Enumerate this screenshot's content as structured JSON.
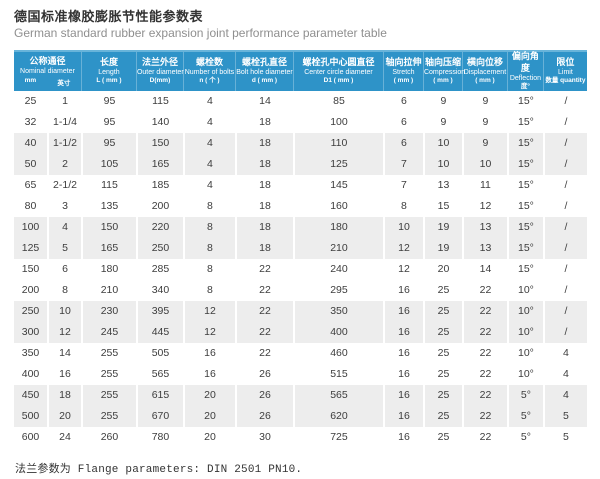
{
  "page": {
    "title": "德国标准橡胶膨胀节性能参数表",
    "subtitle": "German standard rubber expansion joint performance parameter table",
    "footnote": "法兰参数为 Flange parameters: DIN 2501 PN10."
  },
  "colors": {
    "header_bg": "#2e93c8",
    "header_top_edge": "#68b4da",
    "alt_row_bg": "#ededed",
    "title_text": "#333333",
    "subtitle_text": "#8f8f8f",
    "header_text": "#ffffff",
    "body_text": "#3d3d3d"
  },
  "table": {
    "header": {
      "group": {
        "zh": "公称通径",
        "en": "Nominal diameter",
        "unit_left": "mm",
        "unit_right": "英寸"
      },
      "cols": [
        {
          "zh": "长度",
          "en": "Length",
          "unit": "L ( mm )"
        },
        {
          "zh": "法兰外径",
          "en": "Outer diameter",
          "unit": "D(mm)"
        },
        {
          "zh": "螺栓数",
          "en": "Number of bolts",
          "unit": "n ( 个 )"
        },
        {
          "zh": "螺栓孔直径",
          "en": "Bolt hole diameter",
          "unit": "d ( mm )"
        },
        {
          "zh": "螺栓孔中心圆直径",
          "en": "Center circle diameter",
          "unit": "D1 ( mm )"
        },
        {
          "zh": "轴向拉伸",
          "en": "Stretch",
          "unit": "( mm )"
        },
        {
          "zh": "轴向压缩",
          "en": "Compression",
          "unit": "( mm )"
        },
        {
          "zh": "横向位移",
          "en": "Displacement",
          "unit": "( mm )"
        },
        {
          "zh": "偏向角度",
          "en": "Deflection",
          "unit": "度°"
        },
        {
          "zh": "限位",
          "en": "Limit",
          "unit": "数量 quantity"
        }
      ]
    },
    "rows": [
      [
        "25",
        "1",
        "95",
        "115",
        "4",
        "14",
        "85",
        "6",
        "9",
        "9",
        "15°",
        "/"
      ],
      [
        "32",
        "1-1/4",
        "95",
        "140",
        "4",
        "18",
        "100",
        "6",
        "9",
        "9",
        "15°",
        "/"
      ],
      [
        "40",
        "1-1/2",
        "95",
        "150",
        "4",
        "18",
        "110",
        "6",
        "10",
        "9",
        "15°",
        "/"
      ],
      [
        "50",
        "2",
        "105",
        "165",
        "4",
        "18",
        "125",
        "7",
        "10",
        "10",
        "15°",
        "/"
      ],
      [
        "65",
        "2-1/2",
        "115",
        "185",
        "4",
        "18",
        "145",
        "7",
        "13",
        "11",
        "15°",
        "/"
      ],
      [
        "80",
        "3",
        "135",
        "200",
        "8",
        "18",
        "160",
        "8",
        "15",
        "12",
        "15°",
        "/"
      ],
      [
        "100",
        "4",
        "150",
        "220",
        "8",
        "18",
        "180",
        "10",
        "19",
        "13",
        "15°",
        "/"
      ],
      [
        "125",
        "5",
        "165",
        "250",
        "8",
        "18",
        "210",
        "12",
        "19",
        "13",
        "15°",
        "/"
      ],
      [
        "150",
        "6",
        "180",
        "285",
        "8",
        "22",
        "240",
        "12",
        "20",
        "14",
        "15°",
        "/"
      ],
      [
        "200",
        "8",
        "210",
        "340",
        "8",
        "22",
        "295",
        "16",
        "25",
        "22",
        "10°",
        "/"
      ],
      [
        "250",
        "10",
        "230",
        "395",
        "12",
        "22",
        "350",
        "16",
        "25",
        "22",
        "10°",
        "/"
      ],
      [
        "300",
        "12",
        "245",
        "445",
        "12",
        "22",
        "400",
        "16",
        "25",
        "22",
        "10°",
        "/"
      ],
      [
        "350",
        "14",
        "255",
        "505",
        "16",
        "22",
        "460",
        "16",
        "25",
        "22",
        "10°",
        "4"
      ],
      [
        "400",
        "16",
        "255",
        "565",
        "16",
        "26",
        "515",
        "16",
        "25",
        "22",
        "10°",
        "4"
      ],
      [
        "450",
        "18",
        "255",
        "615",
        "20",
        "26",
        "565",
        "16",
        "25",
        "22",
        "5°",
        "4"
      ],
      [
        "500",
        "20",
        "255",
        "670",
        "20",
        "26",
        "620",
        "16",
        "25",
        "22",
        "5°",
        "5"
      ],
      [
        "600",
        "24",
        "260",
        "780",
        "20",
        "30",
        "725",
        "16",
        "25",
        "22",
        "5°",
        "5"
      ]
    ],
    "alt_row_indices": [
      2,
      3,
      6,
      7,
      10,
      11,
      14,
      15
    ]
  }
}
